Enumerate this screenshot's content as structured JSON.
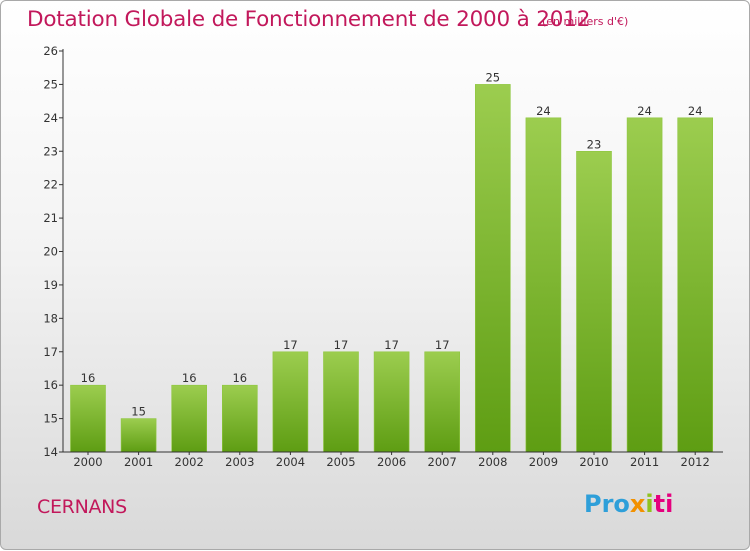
{
  "header": {
    "title": "Dotation Globale de Fonctionnement de 2000 à 2012",
    "unit": "(en milliers d'€)"
  },
  "footer": {
    "commune": "CERNANS",
    "logo_parts": [
      "Pro",
      "x",
      "i",
      "ti"
    ]
  },
  "colors": {
    "title": "#c2185b",
    "bar_light": "#9ccd4f",
    "bar_dark": "#5e9d13",
    "axis": "#333333"
  },
  "chart_data": {
    "type": "bar",
    "categories": [
      "2000",
      "2001",
      "2002",
      "2003",
      "2004",
      "2005",
      "2006",
      "2007",
      "2008",
      "2009",
      "2010",
      "2011",
      "2012"
    ],
    "values": [
      16,
      15,
      16,
      16,
      17,
      17,
      17,
      17,
      25,
      24,
      23,
      24,
      24
    ],
    "data_labels": [
      "16",
      "15",
      "16",
      "16",
      "17",
      "17",
      "17",
      "17",
      "25",
      "24",
      "23",
      "24",
      "24"
    ],
    "y_ticks": [
      "14",
      "15",
      "16",
      "17",
      "18",
      "19",
      "20",
      "21",
      "22",
      "23",
      "24",
      "25",
      "26"
    ],
    "ylim": [
      14,
      26
    ],
    "title": "Dotation Globale de Fonctionnement de 2000 à 2012",
    "xlabel": "",
    "ylabel": "",
    "grid": false
  }
}
